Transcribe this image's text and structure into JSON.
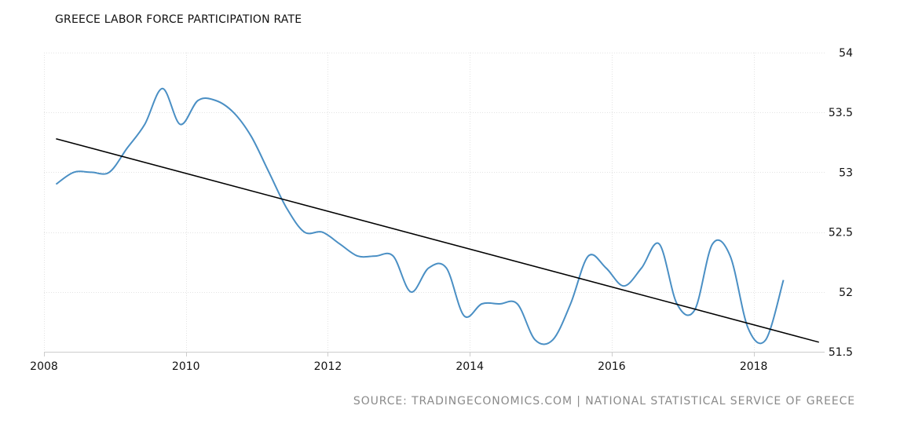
{
  "chart_data": {
    "type": "line",
    "title": "GREECE LABOR FORCE PARTICIPATION RATE",
    "source": "SOURCE: TRADINGECONOMICS.COM | NATIONAL STATISTICAL SERVICE OF GREECE",
    "xlabel": "",
    "ylabel": "",
    "xlim": [
      2008,
      2019
    ],
    "ylim": [
      51.5,
      54
    ],
    "x_ticks": [
      {
        "value": 2008,
        "label": "2008"
      },
      {
        "value": 2010,
        "label": "2010"
      },
      {
        "value": 2012,
        "label": "2012"
      },
      {
        "value": 2014,
        "label": "2014"
      },
      {
        "value": 2016,
        "label": "2016"
      },
      {
        "value": 2018,
        "label": "2018"
      }
    ],
    "y_ticks": [
      {
        "value": 54,
        "label": "54"
      },
      {
        "value": 53.5,
        "label": "53.5"
      },
      {
        "value": 53,
        "label": "53"
      },
      {
        "value": 52.5,
        "label": "52.5"
      },
      {
        "value": 52,
        "label": "52"
      },
      {
        "value": 51.5,
        "label": "51.5"
      }
    ],
    "grid": true,
    "colors": {
      "series": "#4a8fc4",
      "trend": "#000000",
      "grid": "#e3e3e3"
    },
    "series": [
      {
        "x": [
          2008.17,
          2008.42,
          2008.67,
          2008.92,
          2009.17,
          2009.42,
          2009.67,
          2009.92,
          2010.17,
          2010.42,
          2010.67,
          2010.92,
          2011.17,
          2011.42,
          2011.67,
          2011.92,
          2012.17,
          2012.42,
          2012.67,
          2012.92,
          2013.17,
          2013.42,
          2013.67,
          2013.92,
          2014.17,
          2014.42,
          2014.67,
          2014.92,
          2015.17,
          2015.42,
          2015.67,
          2015.92,
          2016.17,
          2016.42,
          2016.67,
          2016.92,
          2017.17,
          2017.42,
          2017.67,
          2017.92,
          2018.17,
          2018.42
        ],
        "values": [
          52.9,
          53.0,
          53.0,
          53.0,
          53.2,
          53.4,
          53.7,
          53.4,
          53.6,
          53.6,
          53.5,
          53.3,
          53.0,
          52.7,
          52.5,
          52.5,
          52.4,
          52.3,
          52.3,
          52.3,
          52.0,
          52.2,
          52.2,
          51.8,
          51.9,
          51.9,
          51.9,
          51.6,
          51.6,
          51.9,
          52.3,
          52.2,
          52.05,
          52.2,
          52.4,
          51.9,
          51.85,
          52.4,
          52.3,
          51.7,
          51.6,
          52.1
        ]
      }
    ],
    "trendline": {
      "x": [
        2008.17,
        2018.92
      ],
      "values": [
        53.28,
        51.58
      ]
    }
  }
}
